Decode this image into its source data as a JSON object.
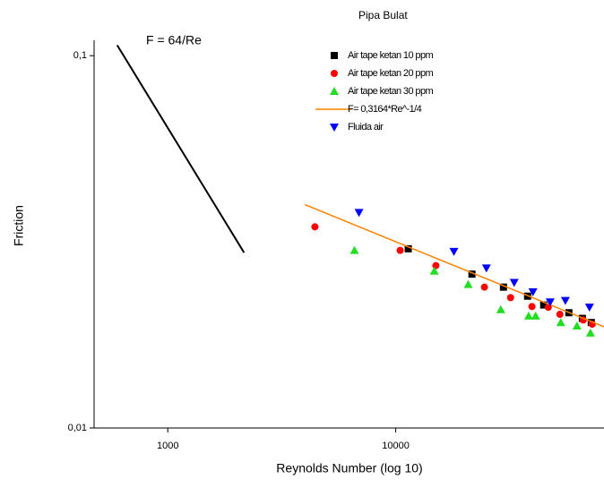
{
  "chart_data": {
    "type": "scatter",
    "legend_title": "Pipa Bulat",
    "x_label": "Reynolds Number (log 10)",
    "y_label": "Friction",
    "x_log": true,
    "y_log": true,
    "xlim": [
      475,
      82000
    ],
    "ylim": [
      0.01,
      0.11
    ],
    "xticks": [
      1000,
      10000
    ],
    "yticks": [
      {
        "value": 0.01,
        "label": "0,01"
      },
      {
        "value": 0.1,
        "label": "0,1"
      }
    ],
    "reference_line": {
      "label": "F = 64/Re",
      "color": "#000000",
      "x": [
        600,
        2160
      ],
      "values": [
        0.1067,
        0.0296
      ]
    },
    "series": [
      {
        "name": "Air tape ketan 10 ppm",
        "color": "#000000",
        "marker": "square",
        "x": [
          11350,
          21600,
          29700,
          37900,
          44600,
          57500,
          65900,
          72100
        ],
        "values": [
          0.0303,
          0.0259,
          0.0239,
          0.0226,
          0.0214,
          0.0204,
          0.0197,
          0.0192
        ]
      },
      {
        "name": "Air tape ketan 20 ppm",
        "color": "#ff0000",
        "marker": "circle",
        "x": [
          4420,
          10460,
          15000,
          24500,
          31900,
          39600,
          46700,
          52500,
          66500,
          72800
        ],
        "values": [
          0.0347,
          0.03,
          0.0273,
          0.0239,
          0.0224,
          0.0212,
          0.0211,
          0.0202,
          0.0195,
          0.019
        ]
      },
      {
        "name": "Air tape ketan 30 ppm",
        "color": "#22dd22",
        "marker": "triangle-up",
        "x": [
          6590,
          14760,
          20800,
          28900,
          38300,
          41100,
          53000,
          62400,
          71500
        ],
        "values": [
          0.03,
          0.0264,
          0.0243,
          0.0208,
          0.02,
          0.02,
          0.0192,
          0.0188,
          0.018
        ]
      },
      {
        "name": "F= 0,3164*Re^-1/4",
        "color": "#ff8000",
        "marker": "line",
        "x": [
          4000,
          82000
        ],
        "values": [
          0.0398,
          0.0187
        ]
      },
      {
        "name": "Fluida air",
        "color": "#0000ff",
        "marker": "triangle-down",
        "x": [
          6900,
          18000,
          25000,
          33100,
          40000,
          47600,
          55500,
          70800
        ],
        "values": [
          0.0379,
          0.0298,
          0.0269,
          0.0246,
          0.0232,
          0.0218,
          0.022,
          0.0211
        ]
      }
    ]
  }
}
